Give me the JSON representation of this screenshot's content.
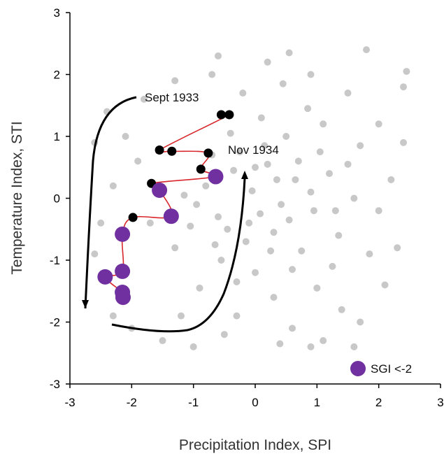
{
  "chart_data": {
    "type": "scatter",
    "title": "",
    "xlabel": "Precipitation Index, SPI",
    "ylabel": "Temperature Index, STI",
    "xlim": [
      -3,
      3
    ],
    "ylim": [
      -3,
      3
    ],
    "xticks": [
      "-3",
      "-2",
      "-1",
      "0",
      "1",
      "2",
      "3"
    ],
    "yticks": [
      "-3",
      "-2",
      "-1",
      "0",
      "1",
      "2",
      "3"
    ],
    "grid": false,
    "legend_position": "bottom-right",
    "legend": {
      "label": "SGI <-2",
      "color": "#7030a0"
    },
    "annotations": {
      "start": "Sept 1933",
      "end": "Nov 1934"
    },
    "colors": {
      "background": "#c8c8c8",
      "drought_path": "#d8262b",
      "month": "#000000",
      "sgi_low": "#7030a0",
      "arrow": "#000000"
    },
    "drought_sequence": [
      {
        "x": -0.55,
        "y": 1.35,
        "sgi_low": false
      },
      {
        "x": -0.42,
        "y": 1.35,
        "sgi_low": false
      },
      {
        "x": -1.55,
        "y": 0.78,
        "sgi_low": false
      },
      {
        "x": -1.35,
        "y": 0.76,
        "sgi_low": false
      },
      {
        "x": -0.76,
        "y": 0.73,
        "sgi_low": false
      },
      {
        "x": -0.88,
        "y": 0.47,
        "sgi_low": false
      },
      {
        "x": -0.64,
        "y": 0.35,
        "sgi_low": true
      },
      {
        "x": -1.68,
        "y": 0.24,
        "sgi_low": false
      },
      {
        "x": -1.55,
        "y": 0.13,
        "sgi_low": true
      },
      {
        "x": -1.36,
        "y": -0.29,
        "sgi_low": true
      },
      {
        "x": -1.98,
        "y": -0.31,
        "sgi_low": false
      },
      {
        "x": -2.15,
        "y": -0.58,
        "sgi_low": true
      },
      {
        "x": -2.15,
        "y": -1.18,
        "sgi_low": true
      },
      {
        "x": -2.43,
        "y": -1.27,
        "sgi_low": true
      },
      {
        "x": -2.15,
        "y": -1.52,
        "sgi_low": true
      },
      {
        "x": -2.14,
        "y": -1.6,
        "sgi_low": true
      }
    ],
    "background_points": [
      [
        -0.05,
        0.12
      ],
      [
        0.08,
        -0.25
      ],
      [
        -0.35,
        0.45
      ],
      [
        0.42,
        -0.1
      ],
      [
        0.2,
        0.55
      ],
      [
        -0.6,
        -0.3
      ],
      [
        0.65,
        0.3
      ],
      [
        -0.15,
        -0.7
      ],
      [
        0.3,
        -0.55
      ],
      [
        -0.8,
        0.2
      ],
      [
        0.95,
        -0.2
      ],
      [
        1.2,
        0.4
      ],
      [
        -1.05,
        -0.45
      ],
      [
        0.5,
        1.0
      ],
      [
        -0.4,
        1.05
      ],
      [
        0.1,
        1.3
      ],
      [
        0.75,
        -0.85
      ],
      [
        -0.55,
        -1.0
      ],
      [
        1.35,
        -0.6
      ],
      [
        -1.3,
        -0.8
      ],
      [
        0.0,
        -1.2
      ],
      [
        1.6,
        0.0
      ],
      [
        -1.7,
        -0.4
      ],
      [
        0.85,
        1.45
      ],
      [
        -0.2,
        1.7
      ],
      [
        0.45,
        1.85
      ],
      [
        1.1,
        1.2
      ],
      [
        1.7,
        0.85
      ],
      [
        2.0,
        -0.2
      ],
      [
        1.85,
        -0.9
      ],
      [
        -0.9,
        -1.45
      ],
      [
        0.3,
        -1.6
      ],
      [
        1.0,
        -1.45
      ],
      [
        -0.3,
        -1.9
      ],
      [
        0.6,
        -2.1
      ],
      [
        -1.2,
        -1.9
      ],
      [
        1.4,
        -1.8
      ],
      [
        2.2,
        0.3
      ],
      [
        -1.9,
        0.6
      ],
      [
        -2.1,
        1.0
      ],
      [
        -2.3,
        0.2
      ],
      [
        -2.5,
        -0.4
      ],
      [
        -2.6,
        0.9
      ],
      [
        -2.4,
        1.4
      ],
      [
        -1.8,
        1.6
      ],
      [
        -1.3,
        1.9
      ],
      [
        -0.7,
        2.0
      ],
      [
        0.2,
        2.2
      ],
      [
        0.9,
        2.0
      ],
      [
        1.5,
        1.7
      ],
      [
        2.0,
        1.2
      ],
      [
        2.4,
        1.8
      ],
      [
        2.4,
        0.9
      ],
      [
        2.3,
        -0.8
      ],
      [
        2.1,
        -1.4
      ],
      [
        1.7,
        -2.0
      ],
      [
        1.1,
        -2.3
      ],
      [
        0.4,
        -2.35
      ],
      [
        -0.5,
        -2.2
      ],
      [
        -1.5,
        -2.3
      ],
      [
        -2.0,
        -2.1
      ],
      [
        -2.3,
        -1.9
      ],
      [
        -1.0,
        -2.4
      ],
      [
        0.9,
        -2.4
      ],
      [
        1.8,
        2.4
      ],
      [
        -0.6,
        2.3
      ],
      [
        0.55,
        2.35
      ],
      [
        -2.6,
        -0.9
      ],
      [
        2.45,
        2.05
      ],
      [
        1.6,
        -2.4
      ],
      [
        -0.25,
        0.75
      ],
      [
        0.15,
        0.85
      ],
      [
        0.7,
        0.6
      ],
      [
        -0.45,
        -0.5
      ],
      [
        0.55,
        -0.35
      ],
      [
        0.9,
        0.1
      ],
      [
        -0.7,
        0.7
      ],
      [
        -0.1,
        -0.4
      ],
      [
        0.35,
        0.3
      ],
      [
        1.3,
        -0.2
      ],
      [
        0.0,
        0.5
      ],
      [
        -0.95,
        -0.1
      ],
      [
        1.05,
        0.75
      ],
      [
        0.25,
        -0.85
      ],
      [
        -0.65,
        -0.75
      ],
      [
        1.5,
        0.55
      ],
      [
        0.6,
        -1.15
      ],
      [
        -0.3,
        -1.35
      ],
      [
        1.25,
        -1.1
      ],
      [
        -1.15,
        0.05
      ]
    ]
  }
}
